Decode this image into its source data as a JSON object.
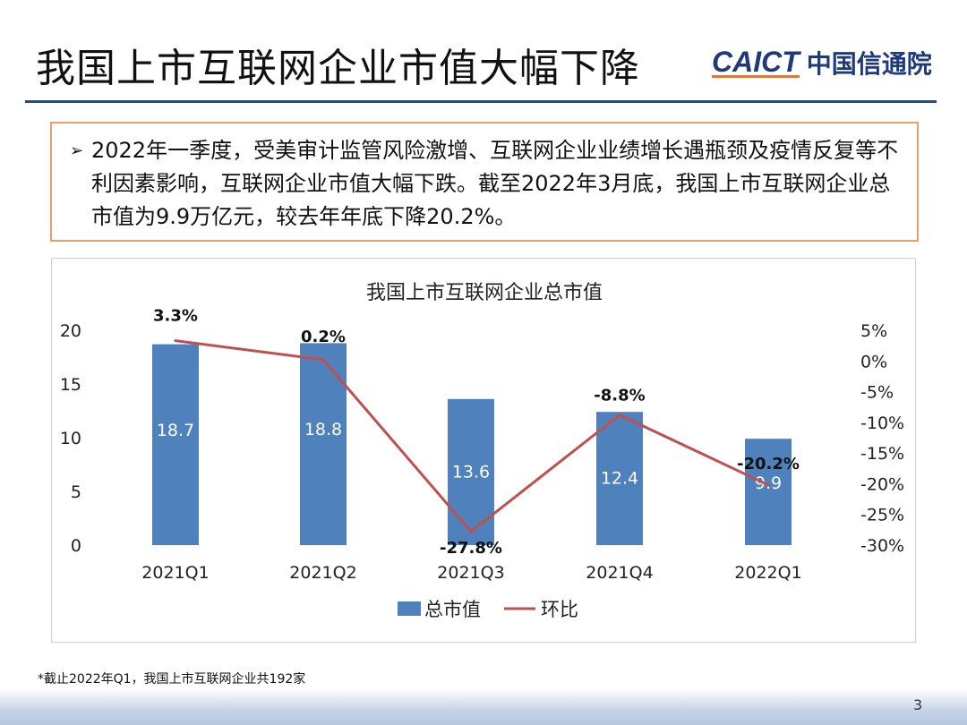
{
  "slide": {
    "title": "我国上市互联网企业市值大幅下降",
    "logo": {
      "en": "CAICT",
      "cn": "中国信通院"
    },
    "bullet_icon": "arrow-bullet-icon",
    "summary": "2022年一季度，受美审计监管风险激增、互联网企业业绩增长遇瓶颈及疫情反复等不利因素影响，互联网企业市值大幅下跌。截至2022年3月底，我国上市互联网企业总市值为9.9万亿元，较去年年底下降20.2%。",
    "footnote": "*截止2022年Q1，我国上市互联网企业共192家",
    "page_number": "3",
    "watermark": "CAICT 中国信通院"
  },
  "chart_data": {
    "type": "bar+line",
    "title": "我国上市互联网企业总市值",
    "categories": [
      "2021Q1",
      "2021Q2",
      "2021Q3",
      "2021Q4",
      "2022Q1"
    ],
    "series": [
      {
        "name": "总市值",
        "type": "bar",
        "axis": "left",
        "color": "#4f81bd",
        "values": [
          18.7,
          18.8,
          13.6,
          12.4,
          9.9
        ],
        "labels": [
          "18.7",
          "18.8",
          "13.6",
          "12.4",
          "9.9"
        ]
      },
      {
        "name": "环比",
        "type": "line",
        "axis": "right",
        "color": "#c0504d",
        "values": [
          3.3,
          0.2,
          -27.8,
          -8.8,
          -20.2
        ],
        "labels": [
          "3.3%",
          "0.2%",
          "-27.8%",
          "-8.8%",
          "-20.2%"
        ]
      }
    ],
    "left_axis": {
      "ylim": [
        0,
        20
      ],
      "ticks": [
        "0",
        "5",
        "10",
        "15",
        "20"
      ]
    },
    "right_axis": {
      "ylim": [
        -30,
        5
      ],
      "ticks": [
        "5%",
        "0%",
        "-5%",
        "-10%",
        "-15%",
        "-20%",
        "-25%",
        "-30%"
      ]
    },
    "grid": false,
    "legend": "bottom"
  }
}
